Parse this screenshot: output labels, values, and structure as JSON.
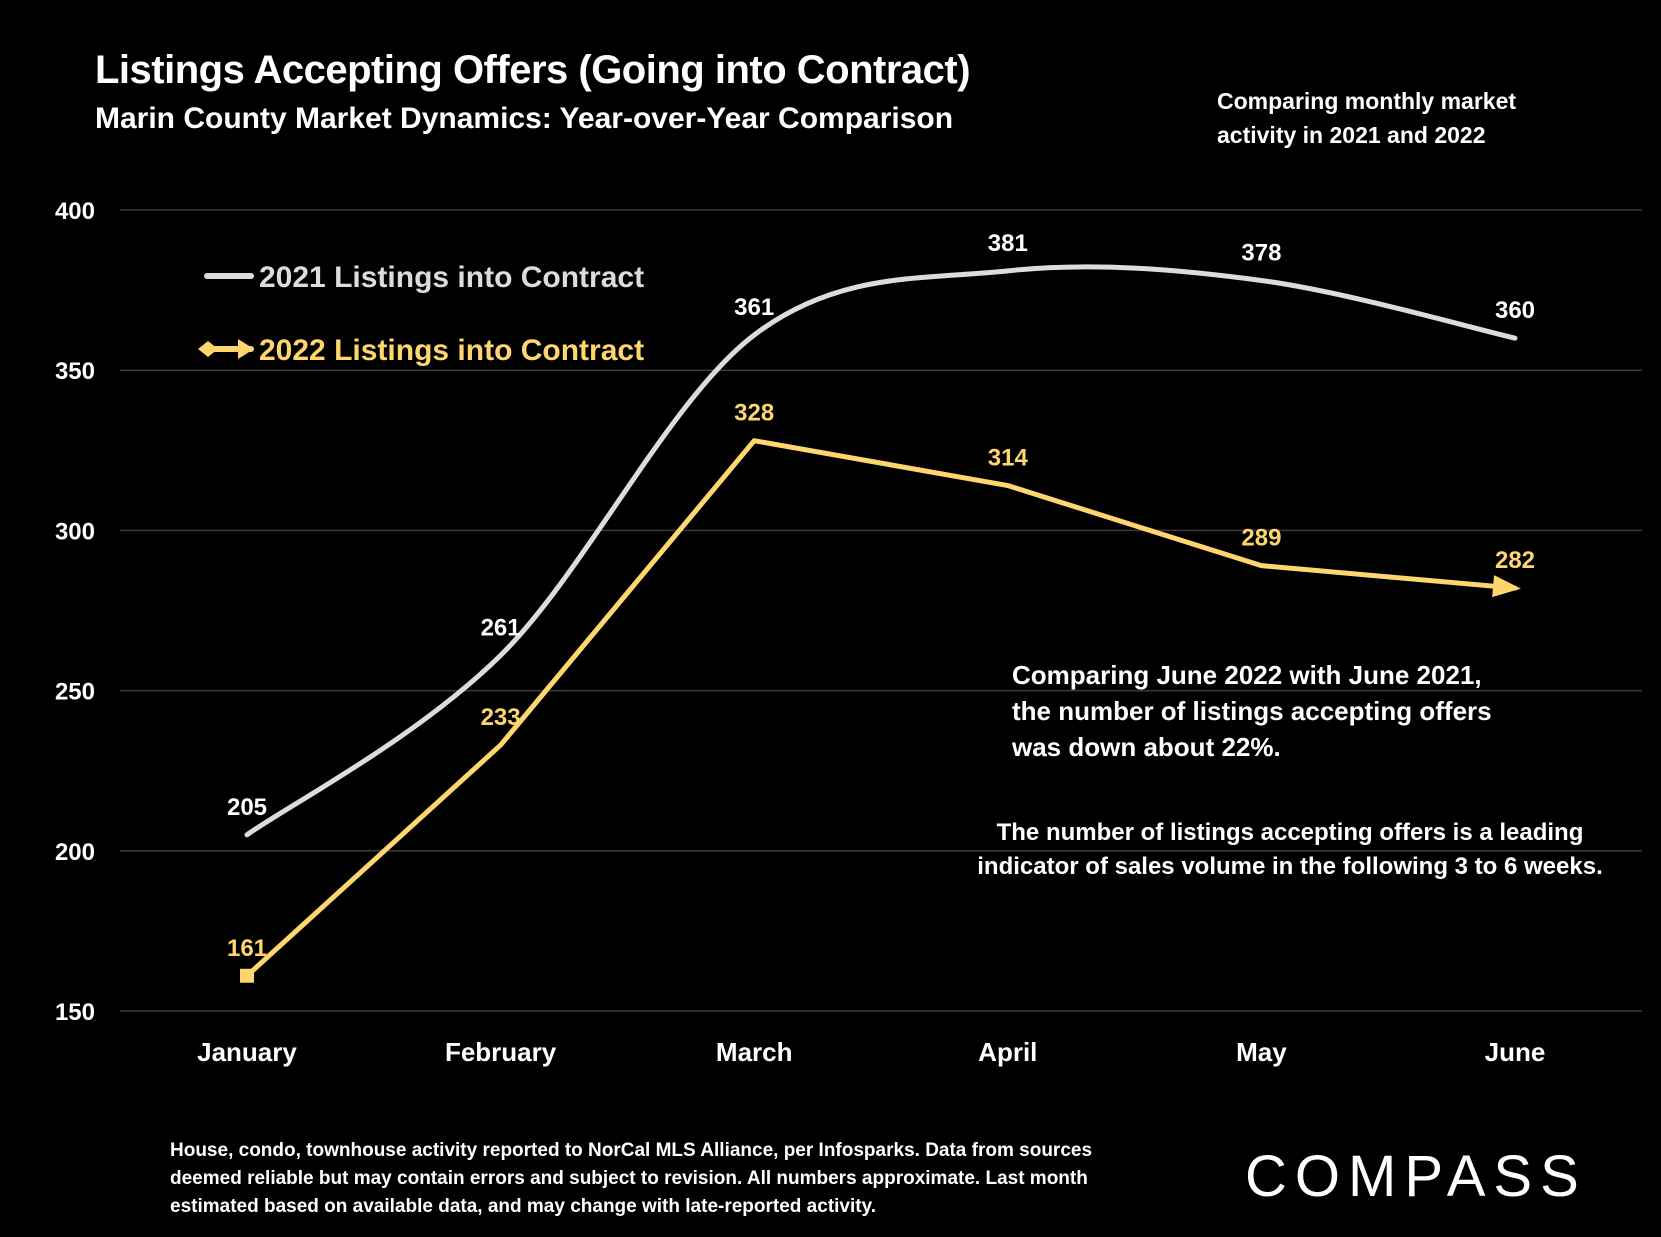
{
  "title": "Listings Accepting Offers (Going into Contract)",
  "subtitle": "Marin County Market Dynamics: Year-over-Year Comparison",
  "note_top": [
    "Comparing monthly market",
    "activity in 2021 and 2022"
  ],
  "note_compare": [
    "Comparing June 2022 with June 2021,",
    "the number of listings accepting offers",
    "was down about 22%."
  ],
  "note_lead": [
    "The number of listings accepting offers is a leading",
    "indicator of sales volume in the following 3 to 6 weeks."
  ],
  "footer": [
    "House, condo, townhouse activity reported to NorCal MLS Alliance, per Infosparks. Data from sources",
    "deemed reliable but may contain errors and subject to revision. All numbers approximate. Last month",
    "estimated based on available data, and may change with late-reported activity."
  ],
  "logo": "COMPASS",
  "colors": {
    "series_2021": "#dcdcdc",
    "series_2022": "#ffd66e",
    "grid": "#3a3a3a",
    "background": "#000000"
  },
  "chart_data": {
    "type": "line",
    "categories": [
      "January",
      "February",
      "March",
      "April",
      "May",
      "June"
    ],
    "series": [
      {
        "name": "2021 Listings into Contract",
        "values": [
          205,
          261,
          361,
          381,
          378,
          360
        ],
        "color": "#dcdcdc",
        "smooth": true
      },
      {
        "name": "2022 Listings into Contract",
        "values": [
          161,
          233,
          328,
          314,
          289,
          282
        ],
        "color": "#ffd66e",
        "smooth": false,
        "start_marker": "square",
        "end_marker": "arrow"
      }
    ],
    "yticks": [
      150,
      200,
      250,
      300,
      350,
      400
    ],
    "ylim": [
      150,
      400
    ],
    "grid": true,
    "legend": "top-left"
  }
}
